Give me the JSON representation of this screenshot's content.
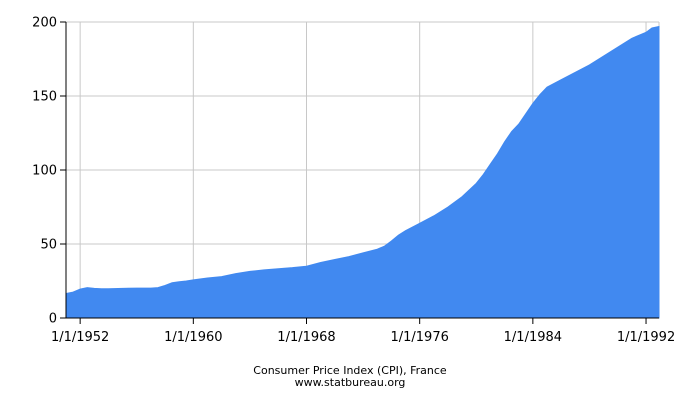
{
  "chart_data": {
    "type": "area",
    "title": "Consumer Price Index (CPI), France",
    "subtitle": "www.statbureau.org",
    "xlabel": "",
    "ylabel": "",
    "x_ticks": [
      "1/1/1952",
      "1/1/1960",
      "1/1/1968",
      "1/1/1976",
      "1/1/1984",
      "1/1/1992"
    ],
    "y_ticks": [
      "0",
      "50",
      "100",
      "150",
      "200"
    ],
    "xlim": [
      "1951-01-01",
      "1992-12-01"
    ],
    "ylim": [
      0,
      200
    ],
    "grid": true,
    "fill_color": "#4189f0",
    "series": [
      {
        "x": [
          "1951-01-01",
          "1951-07-01",
          "1952-01-01",
          "1952-07-01",
          "1953-01-01",
          "1953-07-01",
          "1954-01-01",
          "1955-01-01",
          "1956-01-01",
          "1957-01-01",
          "1957-07-01",
          "1958-01-01",
          "1958-07-01",
          "1959-01-01",
          "1959-07-01",
          "1960-01-01",
          "1961-01-01",
          "1962-01-01",
          "1963-01-01",
          "1964-01-01",
          "1965-01-01",
          "1966-01-01",
          "1967-01-01",
          "1968-01-01",
          "1969-01-01",
          "1970-01-01",
          "1971-01-01",
          "1972-01-01",
          "1973-01-01",
          "1973-07-01",
          "1974-01-01",
          "1974-07-01",
          "1975-01-01",
          "1976-01-01",
          "1977-01-01",
          "1978-01-01",
          "1979-01-01",
          "1980-01-01",
          "1980-07-01",
          "1981-01-01",
          "1981-07-01",
          "1982-01-01",
          "1982-07-01",
          "1983-01-01",
          "1983-07-01",
          "1984-01-01",
          "1984-07-01",
          "1985-01-01",
          "1986-01-01",
          "1987-01-01",
          "1988-01-01",
          "1989-01-01",
          "1990-01-01",
          "1991-01-01",
          "1992-01-01",
          "1992-06-01",
          "1992-12-01"
        ],
        "y": [
          16.5,
          17.5,
          19.5,
          20.5,
          20,
          19.8,
          19.8,
          20,
          20.2,
          20.2,
          20.5,
          22,
          23.8,
          24.5,
          25,
          25.8,
          27,
          28,
          30,
          31.5,
          32.5,
          33.3,
          34,
          35,
          37.5,
          39.5,
          41.5,
          44,
          46.5,
          48.5,
          52,
          56,
          59,
          64,
          69,
          75,
          82,
          91,
          97,
          104,
          111,
          119,
          126,
          131,
          138,
          145,
          151,
          156,
          161,
          166,
          171,
          177,
          183,
          189,
          193,
          196,
          197
        ]
      }
    ]
  }
}
